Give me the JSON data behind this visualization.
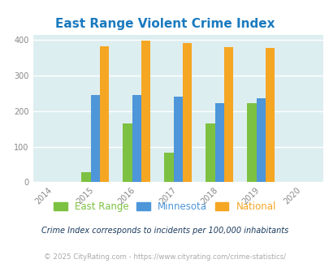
{
  "title": "East Range Violent Crime Index",
  "years": [
    2015,
    2016,
    2017,
    2018,
    2019
  ],
  "east_range": [
    28,
    165,
    83,
    165,
    222
  ],
  "minnesota": [
    245,
    246,
    242,
    222,
    237
  ],
  "national": [
    383,
    398,
    393,
    381,
    379
  ],
  "xlim": [
    2013.5,
    2020.5
  ],
  "ylim": [
    0,
    415
  ],
  "yticks": [
    0,
    100,
    200,
    300,
    400
  ],
  "xticks": [
    2014,
    2015,
    2016,
    2017,
    2018,
    2019,
    2020
  ],
  "color_east_range": "#7dc142",
  "color_minnesota": "#4d96d9",
  "color_national": "#f5a623",
  "bg_color": "#ddeef0",
  "grid_color": "#ffffff",
  "bar_width": 0.22,
  "title_color": "#1a7abf",
  "title_fontsize": 11,
  "legend_labels": [
    "East Range",
    "Minnesota",
    "National"
  ],
  "legend_colors": [
    "#7dc142",
    "#4d96d9",
    "#f5a623"
  ],
  "footnote1": "Crime Index corresponds to incidents per 100,000 inhabitants",
  "footnote2": "© 2025 CityRating.com - https://www.cityrating.com/crime-statistics/",
  "footnote1_color": "#1a3a5c",
  "footnote2_color": "#aaaaaa"
}
